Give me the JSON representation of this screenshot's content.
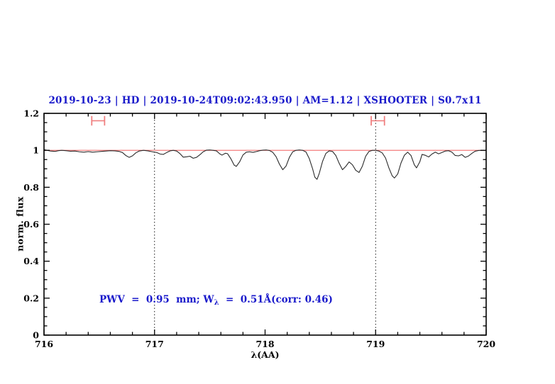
{
  "header": {
    "title": "2019-10-23 | HD | 2019-10-24T09:02:43.950 | AM=1.12 | XSHOOTER | S0.7x11"
  },
  "colors": {
    "title_blue": "#1a1acb",
    "axis_black": "#000000",
    "spectrum_line": "#2a2a2a",
    "continuum_red": "#f26b6b",
    "marker_salmon": "#f08080",
    "background": "#ffffff"
  },
  "annotation": {
    "prefix": "PWV  =  0.95  mm; W",
    "subscript": "λ",
    "suffix": "  =  0.51Å(corr: 0.46)",
    "full_text": "PWV = 0.95 mm; Wλ = 0.51Å(corr: 0.46)"
  },
  "chart_data": {
    "type": "line",
    "title": "2019-10-23 | HD | 2019-10-24T09:02:43.950 | AM=1.12 | XSHOOTER | S0.7x11",
    "xlabel": "λ(AA)",
    "ylabel": "norm. flux",
    "xlim": [
      716,
      720
    ],
    "ylim": [
      0,
      1.2
    ],
    "x_major_ticks": [
      716,
      717,
      718,
      719,
      720
    ],
    "x_tick_labels": [
      "716",
      "717",
      "718",
      "719",
      "720"
    ],
    "x_minor_step": 0.2,
    "y_major_ticks": [
      0,
      0.2,
      0.4,
      0.6,
      0.8,
      1,
      1.2
    ],
    "y_tick_labels": [
      "0",
      "0.2",
      "0.4",
      "0.6",
      "0.8",
      "1",
      "1.2"
    ],
    "y_minor_step": 0.05,
    "grid": false,
    "reference_vlines_x": [
      717,
      719
    ],
    "band_markers": [
      {
        "x_center": 716.49,
        "half_width": 0.058,
        "y": 1.16,
        "cap_half_height": 0.026
      },
      {
        "x_center": 719.02,
        "half_width": 0.06,
        "y": 1.16,
        "cap_half_height": 0.026
      }
    ],
    "series": [
      {
        "name": "continuum",
        "color": "#f26b6b",
        "width": 1.2,
        "points": [
          [
            716.0,
            1.0
          ],
          [
            720.0,
            1.0
          ]
        ]
      },
      {
        "name": "observed-spectrum",
        "color": "#2a2a2a",
        "width": 1.1,
        "points": [
          [
            716.0,
            1.004
          ],
          [
            716.03,
            1.0
          ],
          [
            716.06,
            0.996
          ],
          [
            716.1,
            0.994
          ],
          [
            716.13,
            0.998
          ],
          [
            716.16,
            1.0
          ],
          [
            716.2,
            0.998
          ],
          [
            716.24,
            0.995
          ],
          [
            716.28,
            0.996
          ],
          [
            716.32,
            0.992
          ],
          [
            716.36,
            0.99
          ],
          [
            716.4,
            0.993
          ],
          [
            716.44,
            0.99
          ],
          [
            716.48,
            0.992
          ],
          [
            716.52,
            0.994
          ],
          [
            716.56,
            0.996
          ],
          [
            716.6,
            0.998
          ],
          [
            716.64,
            0.997
          ],
          [
            716.68,
            0.994
          ],
          [
            716.71,
            0.988
          ],
          [
            716.74,
            0.972
          ],
          [
            716.77,
            0.962
          ],
          [
            716.8,
            0.97
          ],
          [
            716.83,
            0.986
          ],
          [
            716.86,
            0.996
          ],
          [
            716.9,
            1.0
          ],
          [
            716.94,
            0.997
          ],
          [
            716.98,
            0.992
          ],
          [
            717.02,
            0.988
          ],
          [
            717.05,
            0.98
          ],
          [
            717.08,
            0.978
          ],
          [
            717.11,
            0.988
          ],
          [
            717.14,
            0.997
          ],
          [
            717.17,
            1.0
          ],
          [
            717.2,
            0.996
          ],
          [
            717.23,
            0.982
          ],
          [
            717.26,
            0.963
          ],
          [
            717.29,
            0.965
          ],
          [
            717.32,
            0.968
          ],
          [
            717.35,
            0.957
          ],
          [
            717.38,
            0.962
          ],
          [
            717.41,
            0.976
          ],
          [
            717.44,
            0.992
          ],
          [
            717.47,
            1.001
          ],
          [
            717.5,
            1.002
          ],
          [
            717.53,
            1.0
          ],
          [
            717.56,
            0.997
          ],
          [
            717.59,
            0.981
          ],
          [
            717.61,
            0.974
          ],
          [
            717.64,
            0.984
          ],
          [
            717.66,
            0.982
          ],
          [
            717.69,
            0.955
          ],
          [
            717.72,
            0.92
          ],
          [
            717.74,
            0.913
          ],
          [
            717.77,
            0.938
          ],
          [
            717.8,
            0.975
          ],
          [
            717.83,
            0.99
          ],
          [
            717.86,
            0.992
          ],
          [
            717.89,
            0.989
          ],
          [
            717.92,
            0.993
          ],
          [
            717.95,
            0.998
          ],
          [
            717.98,
            1.001
          ],
          [
            718.01,
            1.002
          ],
          [
            718.04,
            0.999
          ],
          [
            718.07,
            0.989
          ],
          [
            718.1,
            0.965
          ],
          [
            718.13,
            0.925
          ],
          [
            718.16,
            0.895
          ],
          [
            718.19,
            0.915
          ],
          [
            718.22,
            0.962
          ],
          [
            718.25,
            0.992
          ],
          [
            718.28,
            1.0
          ],
          [
            718.31,
            1.002
          ],
          [
            718.34,
            1.0
          ],
          [
            718.37,
            0.991
          ],
          [
            718.4,
            0.955
          ],
          [
            718.43,
            0.9
          ],
          [
            718.45,
            0.855
          ],
          [
            718.47,
            0.843
          ],
          [
            718.49,
            0.875
          ],
          [
            718.52,
            0.94
          ],
          [
            718.55,
            0.983
          ],
          [
            718.58,
            0.997
          ],
          [
            718.61,
            0.994
          ],
          [
            718.64,
            0.972
          ],
          [
            718.67,
            0.93
          ],
          [
            718.7,
            0.895
          ],
          [
            718.73,
            0.913
          ],
          [
            718.76,
            0.937
          ],
          [
            718.79,
            0.922
          ],
          [
            718.82,
            0.892
          ],
          [
            718.85,
            0.88
          ],
          [
            718.88,
            0.914
          ],
          [
            718.91,
            0.968
          ],
          [
            718.94,
            0.994
          ],
          [
            718.97,
            1.0
          ],
          [
            719.0,
            1.0
          ],
          [
            719.03,
            0.996
          ],
          [
            719.06,
            0.986
          ],
          [
            719.09,
            0.958
          ],
          [
            719.12,
            0.905
          ],
          [
            719.15,
            0.862
          ],
          [
            719.17,
            0.85
          ],
          [
            719.2,
            0.872
          ],
          [
            719.23,
            0.932
          ],
          [
            719.26,
            0.973
          ],
          [
            719.29,
            0.99
          ],
          [
            719.32,
            0.972
          ],
          [
            719.35,
            0.922
          ],
          [
            719.37,
            0.905
          ],
          [
            719.4,
            0.938
          ],
          [
            719.42,
            0.978
          ],
          [
            719.45,
            0.973
          ],
          [
            719.48,
            0.964
          ],
          [
            719.51,
            0.98
          ],
          [
            719.54,
            0.99
          ],
          [
            719.57,
            0.981
          ],
          [
            719.6,
            0.988
          ],
          [
            719.63,
            0.996
          ],
          [
            719.66,
            0.998
          ],
          [
            719.69,
            0.99
          ],
          [
            719.72,
            0.972
          ],
          [
            719.75,
            0.97
          ],
          [
            719.78,
            0.977
          ],
          [
            719.81,
            0.962
          ],
          [
            719.84,
            0.969
          ],
          [
            719.87,
            0.983
          ],
          [
            719.9,
            0.995
          ],
          [
            719.93,
            0.999
          ],
          [
            719.96,
            1.0
          ],
          [
            720.0,
            1.0
          ]
        ]
      }
    ]
  }
}
